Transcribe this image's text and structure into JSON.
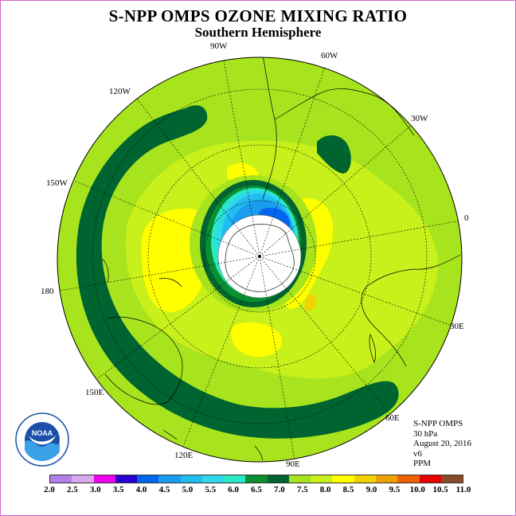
{
  "title": "S-NPP OMPS OZONE MIXING RATIO",
  "subtitle": "Southern Hemisphere",
  "longitude_labels": {
    "lon_90w": "90W",
    "lon_60w": "60W",
    "lon_120w": "120W",
    "lon_30w": "30W",
    "lon_150w": "150W",
    "lon_0": "0",
    "lon_180": "180",
    "lon_30e": "30E",
    "lon_150e": "150E",
    "lon_60e": "60E",
    "lon_120e": "120E",
    "lon_90e": "90E"
  },
  "info": {
    "instrument": "S-NPP OMPS",
    "level": "30 hPa",
    "date": "August 20, 2016",
    "version": "v6",
    "units": "PPM"
  },
  "logo_text": "NOAA",
  "colorbar": {
    "labels": [
      "2.0",
      "2.5",
      "3.0",
      "3.5",
      "4.0",
      "4.5",
      "5.0",
      "5.5",
      "6.0",
      "6.5",
      "7.0",
      "7.5",
      "8.0",
      "8.5",
      "9.0",
      "9.5",
      "10.0",
      "10.5",
      "11.0"
    ],
    "colors": [
      "#b280e8",
      "#dba7f0",
      "#f000f0",
      "#2800d0",
      "#0066f0",
      "#1a9cf0",
      "#22bdf0",
      "#30d8ea",
      "#2ae8c8",
      "#0a9030",
      "#006430",
      "#a8e41e",
      "#c8f01a",
      "#ffff00",
      "#f2d200",
      "#f0a000",
      "#f06000",
      "#e80000",
      "#8c4a28"
    ]
  },
  "map_colors": {
    "ocean_background": "#ffffff",
    "level_7_0": "#006430",
    "level_7_5": "#a8e41e",
    "level_8_0": "#c8f01a",
    "level_8_5": "#ffff00",
    "level_9_0": "#f2d200",
    "level_6_5": "#0a9030",
    "level_6_0": "#2ae8c8",
    "level_5_5": "#30d8ea",
    "level_5_0": "#22bdf0",
    "level_4_5": "#1a9cf0",
    "level_4_0": "#0066f0"
  }
}
